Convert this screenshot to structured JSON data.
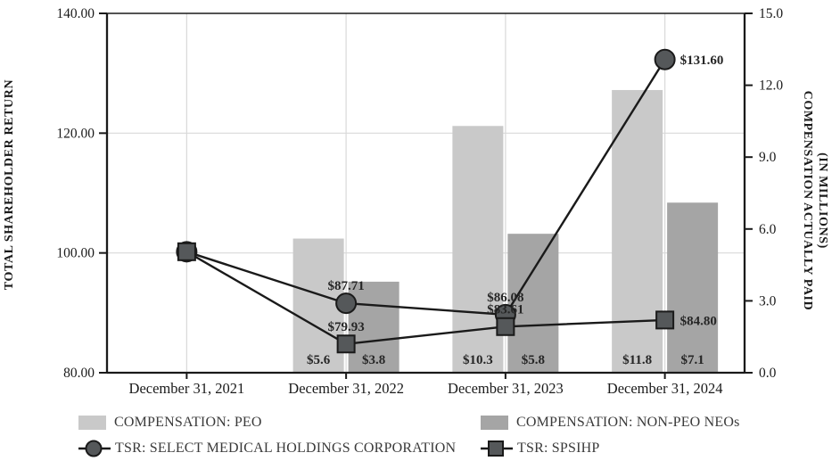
{
  "chart_data": {
    "type": "combo-bar-line",
    "title": "",
    "categories": [
      "December 31, 2021",
      "December 31, 2022",
      "December 31, 2023",
      "December 31, 2024"
    ],
    "left_axis": {
      "title": "TOTAL SHAREHOLDER RETURN",
      "min": 80,
      "max": 140,
      "tick_values": [
        140,
        120,
        100,
        80
      ],
      "tick_labels": [
        "140.00",
        "120.00",
        "100.00",
        "80.00"
      ]
    },
    "right_axis": {
      "title_line1": "COMPENSATION ACTUALLY PAID",
      "title_line2": "(IN MILLIONS)",
      "min": 0,
      "max": 15,
      "tick_values": [
        15,
        12,
        9,
        6,
        3,
        0
      ],
      "tick_labels": [
        "15.0",
        "12.0",
        "9.0",
        "6.0",
        "3.0",
        "0.0"
      ]
    },
    "bar_series": [
      {
        "name": "COMPENSATION: PEO",
        "color": "#c9c9c9",
        "values": [
          null,
          5.6,
          10.3,
          11.8
        ],
        "labels": [
          "",
          "$5.6",
          "$10.3",
          "$11.8"
        ]
      },
      {
        "name": "COMPENSATION: NON-PEO NEOs",
        "color": "#a5a5a5",
        "values": [
          null,
          3.8,
          5.8,
          7.1
        ],
        "labels": [
          "",
          "$3.8",
          "$5.8",
          "$7.1"
        ]
      }
    ],
    "line_series": [
      {
        "name": "TSR: SELECT MEDICAL HOLDINGS CORPORATION",
        "marker": "circle",
        "marker_color": "#55585a",
        "line_color": "#1a1a1a",
        "values": [
          100.0,
          87.71,
          86.08,
          131.6
        ],
        "labels": [
          "",
          "$87.71",
          "$86.08",
          "$131.60"
        ],
        "plot_values": [
          100.2,
          91.6,
          89.7,
          132.3
        ]
      },
      {
        "name": "TSR: SPSIHP",
        "marker": "square",
        "marker_color": "#55585a",
        "line_color": "#1a1a1a",
        "values": [
          100.0,
          79.93,
          83.61,
          84.8
        ],
        "labels": [
          "",
          "$79.93",
          "$83.61",
          "$84.80"
        ],
        "plot_values": [
          100.2,
          84.8,
          87.7,
          88.8
        ]
      }
    ],
    "gridlines_left_values": [
      120,
      100
    ],
    "grid_on": true,
    "grid_color": "#d9d9d9",
    "axis_color": "#1a1a1a",
    "background": "#ffffff",
    "legend_position": "bottom"
  }
}
